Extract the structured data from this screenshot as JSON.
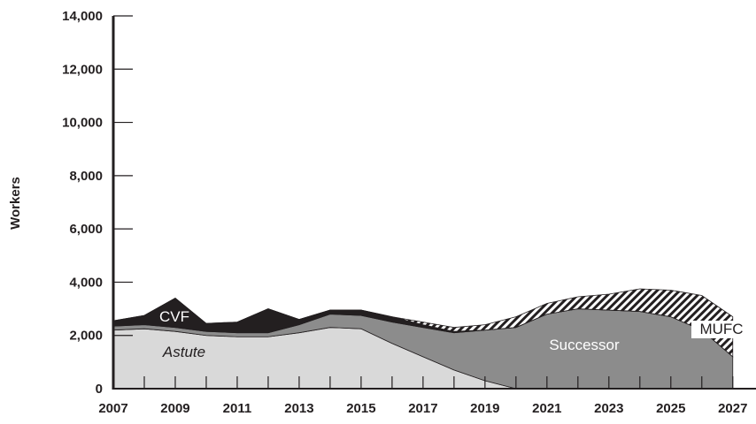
{
  "chart_data": {
    "type": "stacked-area",
    "y_label": "Workers",
    "x": [
      2007,
      2008,
      2009,
      2010,
      2011,
      2012,
      2013,
      2014,
      2015,
      2016,
      2017,
      2018,
      2019,
      2020,
      2021,
      2022,
      2023,
      2024,
      2025,
      2026,
      2027
    ],
    "series": [
      {
        "name": "Astute",
        "color": "#d9d9d9",
        "values": [
          2200,
          2250,
          2150,
          2000,
          1950,
          1950,
          2100,
          2300,
          2250,
          1700,
          1200,
          700,
          300,
          0,
          0,
          0,
          0,
          0,
          0,
          0,
          0
        ]
      },
      {
        "name": "Successor",
        "color": "#8c8c8c",
        "values": [
          150,
          150,
          150,
          150,
          150,
          150,
          300,
          500,
          500,
          800,
          1100,
          1400,
          1900,
          2300,
          2800,
          3000,
          2950,
          2900,
          2700,
          2200,
          1200
        ]
      },
      {
        "name": "CVF",
        "color": "#231f20",
        "values": [
          200,
          350,
          1100,
          300,
          400,
          900,
          200,
          150,
          200,
          200,
          100,
          50,
          0,
          0,
          0,
          0,
          0,
          0,
          0,
          0,
          0
        ]
      },
      {
        "name": "MUFC",
        "color": "#231f20",
        "pattern": "hatch",
        "values": [
          0,
          0,
          0,
          0,
          0,
          0,
          0,
          0,
          0,
          0,
          100,
          150,
          200,
          400,
          400,
          450,
          600,
          850,
          1000,
          1300,
          1500
        ]
      }
    ],
    "xlim": [
      2007,
      2027.75
    ],
    "xticks": [
      2007,
      2009,
      2011,
      2013,
      2015,
      2017,
      2019,
      2021,
      2023,
      2025,
      2027
    ],
    "ylim": [
      0,
      14000
    ],
    "yticks": [
      0,
      {
        "value": 2000,
        "label": "2,000"
      },
      {
        "value": 4000,
        "label": "4,000"
      },
      {
        "value": 6000,
        "label": "6,000"
      },
      {
        "value": 8000,
        "label": "8,000"
      },
      {
        "value": 10000,
        "label": "10,000"
      },
      {
        "value": 12000,
        "label": "12,000"
      },
      {
        "value": 14000,
        "label": "14,000"
      }
    ]
  }
}
